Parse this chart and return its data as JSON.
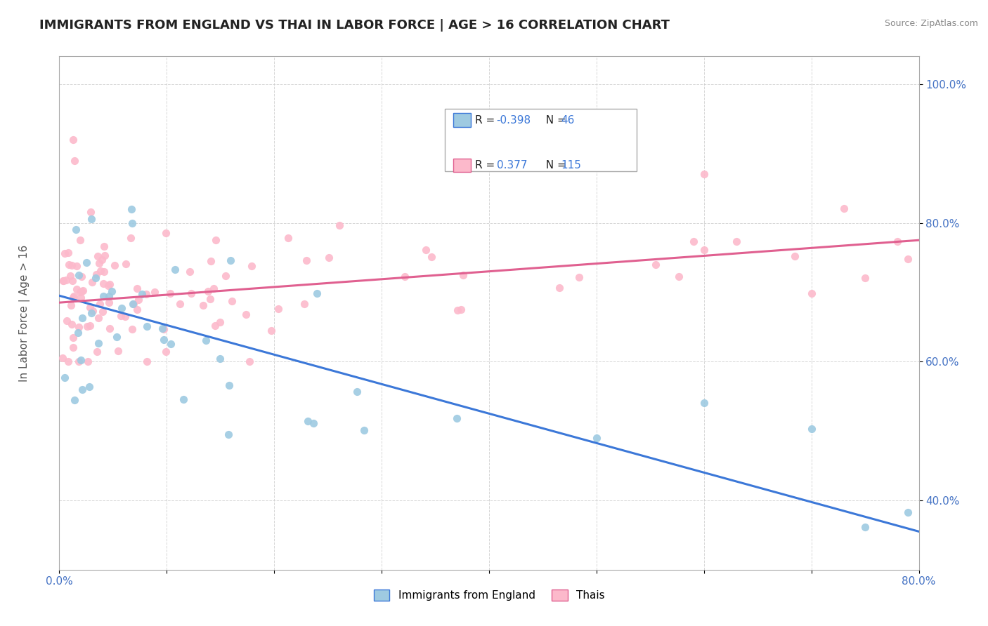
{
  "title": "IMMIGRANTS FROM ENGLAND VS THAI IN LABOR FORCE | AGE > 16 CORRELATION CHART",
  "source": "Source: ZipAtlas.com",
  "ylabel": "In Labor Force | Age > 16",
  "xlim": [
    0.0,
    0.8
  ],
  "ylim": [
    0.3,
    1.04
  ],
  "xtick_vals": [
    0.0,
    0.1,
    0.2,
    0.3,
    0.4,
    0.5,
    0.6,
    0.7,
    0.8
  ],
  "xticklabels": [
    "0.0%",
    "",
    "",
    "",
    "",
    "",
    "",
    "",
    "80.0%"
  ],
  "ytick_vals": [
    0.4,
    0.6,
    0.8,
    1.0
  ],
  "yticklabels": [
    "40.0%",
    "60.0%",
    "80.0%",
    "100.0%"
  ],
  "england_color": "#9ecae1",
  "thai_color": "#fcb9cb",
  "england_line_color": "#3c78d8",
  "thai_line_color": "#e06090",
  "legend_R_england": "-0.398",
  "legend_N_england": "46",
  "legend_R_thai": "0.377",
  "legend_N_thai": "115",
  "england_trend_x": [
    0.0,
    0.8
  ],
  "england_trend_y": [
    0.695,
    0.355
  ],
  "thai_trend_x": [
    0.0,
    0.8
  ],
  "thai_trend_y": [
    0.685,
    0.775
  ],
  "background_color": "#ffffff",
  "grid_color": "#cccccc",
  "title_fontsize": 13,
  "tick_fontsize": 11,
  "label_fontsize": 11
}
